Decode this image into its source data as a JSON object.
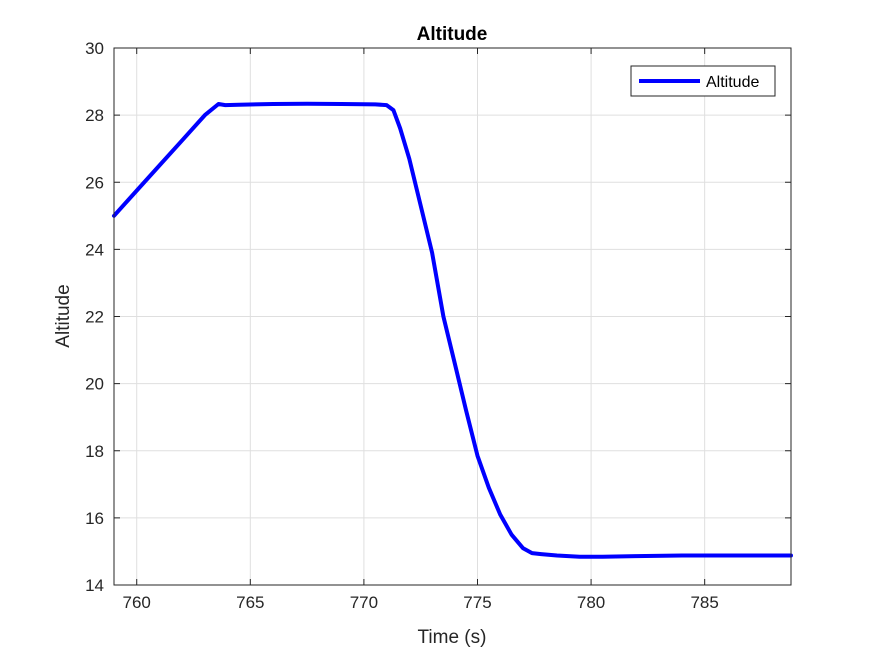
{
  "chart_data": {
    "type": "line",
    "title": "Altitude",
    "xlabel": "Time (s)",
    "ylabel": "Altitude",
    "xlim": [
      759,
      788.8
    ],
    "ylim": [
      14,
      30
    ],
    "xticks": [
      760,
      765,
      770,
      775,
      780,
      785
    ],
    "yticks": [
      14,
      16,
      18,
      20,
      22,
      24,
      26,
      28,
      30
    ],
    "grid": true,
    "legend": {
      "position": "top-right",
      "entries": [
        "Altitude"
      ]
    },
    "series": [
      {
        "name": "Altitude",
        "color": "#0000ff",
        "x": [
          759,
          760,
          761,
          762,
          763,
          763.6,
          763.9,
          764.5,
          766,
          767.5,
          769,
          770.5,
          771,
          771.3,
          771.6,
          772,
          772.5,
          773,
          773.5,
          774,
          774.5,
          775,
          775.5,
          776,
          776.5,
          777,
          777.4,
          777.8,
          778.5,
          779.5,
          780.5,
          782,
          784,
          786,
          788.8
        ],
        "y": [
          25.0,
          25.75,
          26.5,
          27.25,
          28.0,
          28.33,
          28.3,
          28.31,
          28.33,
          28.34,
          28.33,
          28.32,
          28.3,
          28.15,
          27.6,
          26.7,
          25.3,
          23.9,
          22.0,
          20.6,
          19.2,
          17.85,
          16.9,
          16.1,
          15.5,
          15.1,
          14.95,
          14.92,
          14.88,
          14.84,
          14.84,
          14.86,
          14.88,
          14.88,
          14.88
        ]
      }
    ]
  }
}
